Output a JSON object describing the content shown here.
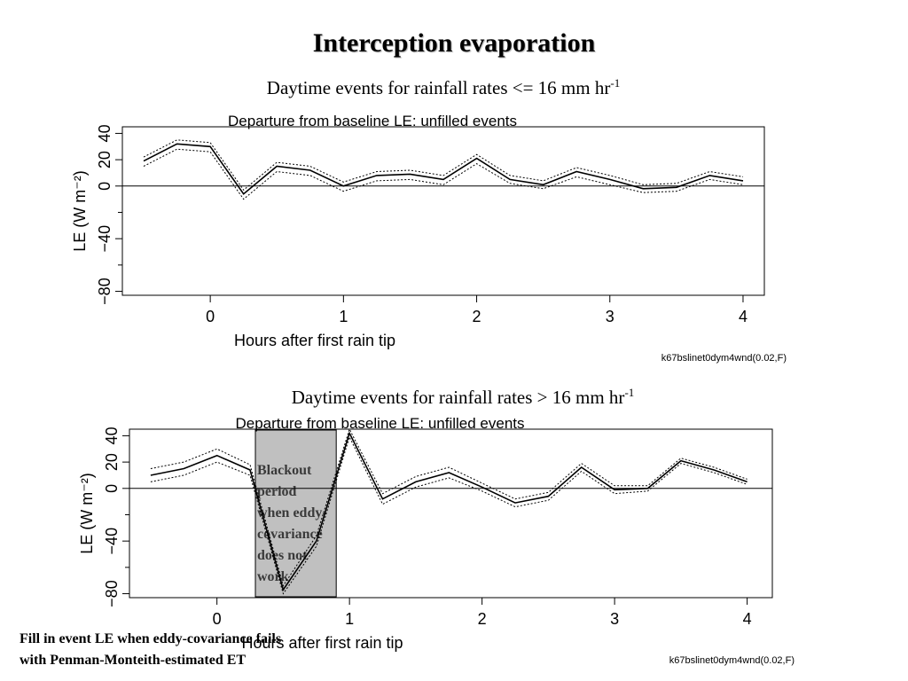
{
  "slide": {
    "title": "Interception evaporation",
    "subtitle1": "Daytime events for rainfall rates <= 16 mm hr",
    "subtitle1_sup": "-1",
    "subtitle2": "Daytime events for rainfall rates > 16 mm hr",
    "subtitle2_sup": "-1",
    "footnote_line1": "Fill in event LE when eddy-covariance fails",
    "footnote_line2": "with Penman-Monteith-estimated ET"
  },
  "chart_data": [
    {
      "type": "line",
      "title": "Departure from baseline LE: unfilled events",
      "xlabel": "Hours after first rain tip",
      "ylabel": "LE (W m⁻²)",
      "xticks": [
        0,
        1,
        2,
        3,
        4
      ],
      "yticks": [
        -80,
        -40,
        0,
        20,
        40
      ],
      "xlim": [
        -0.66,
        4.16
      ],
      "ylim": [
        -83,
        45
      ],
      "caption": "k67bslinet0dym4wnd(0.02,F)",
      "zero_line": true,
      "series": [
        {
          "role": "mean",
          "style": "solid",
          "x": [
            -0.5,
            -0.25,
            0,
            0.25,
            0.5,
            0.75,
            1,
            1.25,
            1.5,
            1.75,
            2,
            2.25,
            2.5,
            2.75,
            3,
            3.25,
            3.5,
            3.75,
            4
          ],
          "y": [
            19,
            32,
            30,
            -6,
            15,
            12,
            0,
            8,
            9,
            5,
            21,
            5,
            1,
            11,
            5,
            -2,
            -1,
            8,
            4
          ]
        },
        {
          "role": "upper",
          "style": "dotted",
          "x": [
            -0.5,
            -0.25,
            0,
            0.25,
            0.5,
            0.75,
            1,
            1.25,
            1.5,
            1.75,
            2,
            2.25,
            2.5,
            2.75,
            3,
            3.25,
            3.5,
            3.75,
            4
          ],
          "y": [
            22,
            35,
            33,
            -3,
            18,
            15,
            3,
            11,
            12,
            8,
            24,
            8,
            4,
            14,
            8,
            1,
            2,
            11,
            7
          ]
        },
        {
          "role": "lower",
          "style": "dotted",
          "x": [
            -0.5,
            -0.25,
            0,
            0.25,
            0.5,
            0.75,
            1,
            1.25,
            1.5,
            1.75,
            2,
            2.25,
            2.5,
            2.75,
            3,
            3.25,
            3.5,
            3.75,
            4
          ],
          "y": [
            15,
            28,
            26,
            -10,
            11,
            8,
            -4,
            4,
            5,
            1,
            17,
            2,
            -2,
            7,
            1,
            -5,
            -4,
            5,
            1
          ]
        }
      ]
    },
    {
      "type": "line",
      "title": "Departure from baseline LE: unfilled events",
      "xlabel": "Hours after first rain tip",
      "ylabel": "LE (W m⁻²)",
      "xticks": [
        0,
        1,
        2,
        3,
        4
      ],
      "yticks": [
        -80,
        -40,
        0,
        20,
        40
      ],
      "xlim": [
        -0.66,
        4.19
      ],
      "ylim": [
        -83,
        45
      ],
      "caption": "k67bslinet0dym4wnd(0.02,F)",
      "zero_line": true,
      "annotation": {
        "text_lines": [
          "Blackout",
          "period",
          "when eddy-",
          "covariance",
          "does not",
          "work"
        ],
        "x_range": [
          0.29,
          0.9
        ],
        "fill": "#c0c0c0"
      },
      "series": [
        {
          "role": "mean",
          "style": "solid",
          "x": [
            -0.5,
            -0.25,
            0,
            0.25,
            0.5,
            0.75,
            1,
            1.25,
            1.5,
            1.75,
            2,
            2.25,
            2.5,
            2.75,
            3,
            3.25,
            3.5,
            3.75,
            4
          ],
          "y": [
            10,
            15,
            25,
            14,
            -77,
            -40,
            42,
            -8,
            5,
            12,
            1,
            -11,
            -6,
            16,
            -1,
            0,
            21,
            14,
            5
          ]
        },
        {
          "role": "upper",
          "style": "dotted",
          "x": [
            -0.5,
            -0.25,
            0,
            0.25,
            0.5,
            0.75,
            1,
            1.25,
            1.5,
            1.75,
            2,
            2.25,
            2.5,
            2.75,
            3,
            3.25,
            3.5,
            3.75,
            4
          ],
          "y": [
            15,
            20,
            30,
            18,
            -74,
            -36,
            45,
            -4,
            9,
            16,
            4,
            -8,
            -3,
            19,
            2,
            2,
            23,
            16,
            7
          ]
        },
        {
          "role": "lower",
          "style": "dotted",
          "x": [
            -0.5,
            -0.25,
            0,
            0.25,
            0.5,
            0.75,
            1,
            1.25,
            1.5,
            1.75,
            2,
            2.25,
            2.5,
            2.75,
            3,
            3.25,
            3.5,
            3.75,
            4
          ],
          "y": [
            5,
            10,
            20,
            10,
            -80,
            -44,
            39,
            -12,
            1,
            8,
            -2,
            -14,
            -9,
            13,
            -4,
            -2,
            19,
            12,
            3
          ]
        }
      ]
    }
  ]
}
